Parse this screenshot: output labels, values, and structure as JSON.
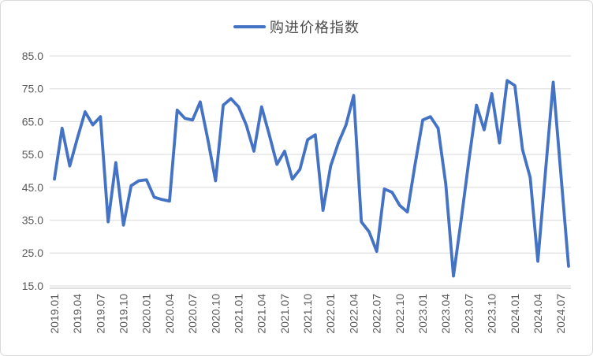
{
  "legend": {
    "label": "购进价格指数"
  },
  "colors": {
    "series_line": "#4472c4",
    "gridline": "#d9d9d9",
    "axis_line": "#bfbfbf",
    "axis_text": "#595959",
    "legend_text": "#4a4a4a",
    "background": "#ffffff"
  },
  "chart_data": {
    "type": "line",
    "title": "",
    "xlabel": "",
    "ylabel": "",
    "legend_position": "top-center",
    "grid": true,
    "ylim": [
      15,
      85
    ],
    "y_tick_step": 10,
    "y_tick_decimals": 1,
    "x_label_every": 3,
    "x": [
      "2019.01",
      "2019.02",
      "2019.03",
      "2019.04",
      "2019.05",
      "2019.06",
      "2019.07",
      "2019.08",
      "2019.09",
      "2019.10",
      "2019.11",
      "2019.12",
      "2020.01",
      "2020.02",
      "2020.03",
      "2020.04",
      "2020.05",
      "2020.06",
      "2020.07",
      "2020.08",
      "2020.09",
      "2020.10",
      "2020.11",
      "2020.12",
      "2021.01",
      "2021.02",
      "2021.03",
      "2021.04",
      "2021.05",
      "2021.06",
      "2021.07",
      "2021.08",
      "2021.09",
      "2021.10",
      "2021.11",
      "2021.12",
      "2022.01",
      "2022.02",
      "2022.03",
      "2022.04",
      "2022.05",
      "2022.06",
      "2022.07",
      "2022.08",
      "2022.09",
      "2022.10",
      "2022.11",
      "2022.12",
      "2023.01",
      "2023.02",
      "2023.03",
      "2023.04",
      "2023.05",
      "2023.06",
      "2023.07",
      "2023.08",
      "2023.09",
      "2023.10",
      "2023.11",
      "2023.12",
      "2024.01",
      "2024.02",
      "2024.03",
      "2024.04",
      "2024.05",
      "2024.06",
      "2024.07",
      "2024.08"
    ],
    "series": [
      {
        "name": "购进价格指数",
        "color": "#4472c4",
        "values": [
          47.5,
          63.0,
          51.5,
          60.0,
          68.0,
          64.0,
          66.5,
          34.5,
          52.5,
          33.5,
          45.5,
          47.0,
          47.3,
          42.0,
          41.3,
          40.8,
          68.5,
          66.0,
          65.5,
          71.0,
          59.5,
          47.0,
          70.0,
          72.0,
          69.5,
          64.0,
          56.0,
          69.5,
          61.0,
          52.0,
          56.0,
          47.5,
          50.5,
          59.5,
          61.0,
          38.0,
          51.5,
          58.5,
          64.0,
          73.0,
          34.5,
          31.5,
          25.5,
          44.5,
          43.5,
          39.5,
          37.5,
          52.0,
          65.5,
          66.5,
          63.0,
          46.0,
          18.0,
          35.0,
          53.0,
          70.0,
          62.5,
          73.5,
          58.5,
          77.5,
          76.0,
          56.5,
          48.0,
          22.5,
          50.0,
          77.0,
          49.0,
          21.0
        ]
      }
    ]
  }
}
